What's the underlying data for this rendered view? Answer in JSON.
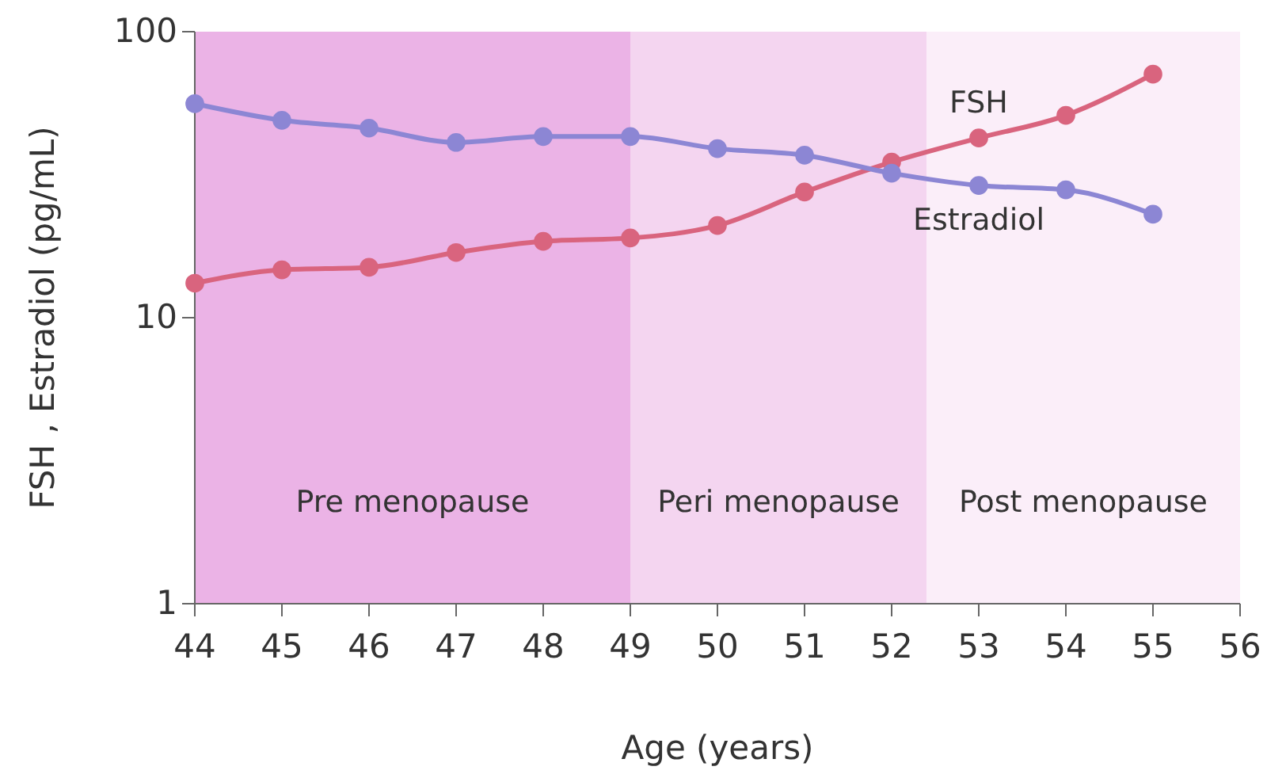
{
  "chart_data": {
    "type": "line",
    "xlabel": "Age (years)",
    "ylabel": "FSH , Estradiol (pg/mL)",
    "x": [
      44,
      45,
      46,
      47,
      48,
      49,
      50,
      51,
      52,
      53,
      54,
      55
    ],
    "series": [
      {
        "name": "FSH",
        "color": "#d9647e",
        "values": [
          13.2,
          14.7,
          15,
          16.9,
          18.5,
          19,
          21,
          27.5,
          35,
          42.5,
          51,
          71
        ]
      },
      {
        "name": "Estradiol",
        "color": "#8c86d4",
        "values": [
          56,
          49,
          46,
          41,
          43,
          43,
          39,
          37,
          32,
          29,
          28,
          23
        ]
      }
    ],
    "xlim": [
      44,
      56
    ],
    "xticks": [
      44,
      45,
      46,
      47,
      48,
      49,
      50,
      51,
      52,
      53,
      54,
      55,
      56
    ],
    "ylim": [
      1,
      100
    ],
    "yticks": [
      1,
      10,
      100
    ],
    "log": "y",
    "marker": "circle",
    "line_style": "solid",
    "bands": [
      {
        "axis": "x",
        "from": 44,
        "to": 49,
        "label": "Pre menopause",
        "color": "#ebb3e6"
      },
      {
        "axis": "x",
        "from": 49,
        "to": 52.4,
        "label": "Peri menopause",
        "color": "#f4d5f0"
      },
      {
        "axis": "x",
        "from": 52.4,
        "to": 56,
        "label": "Post menopause",
        "color": "#fbeef9"
      }
    ]
  }
}
